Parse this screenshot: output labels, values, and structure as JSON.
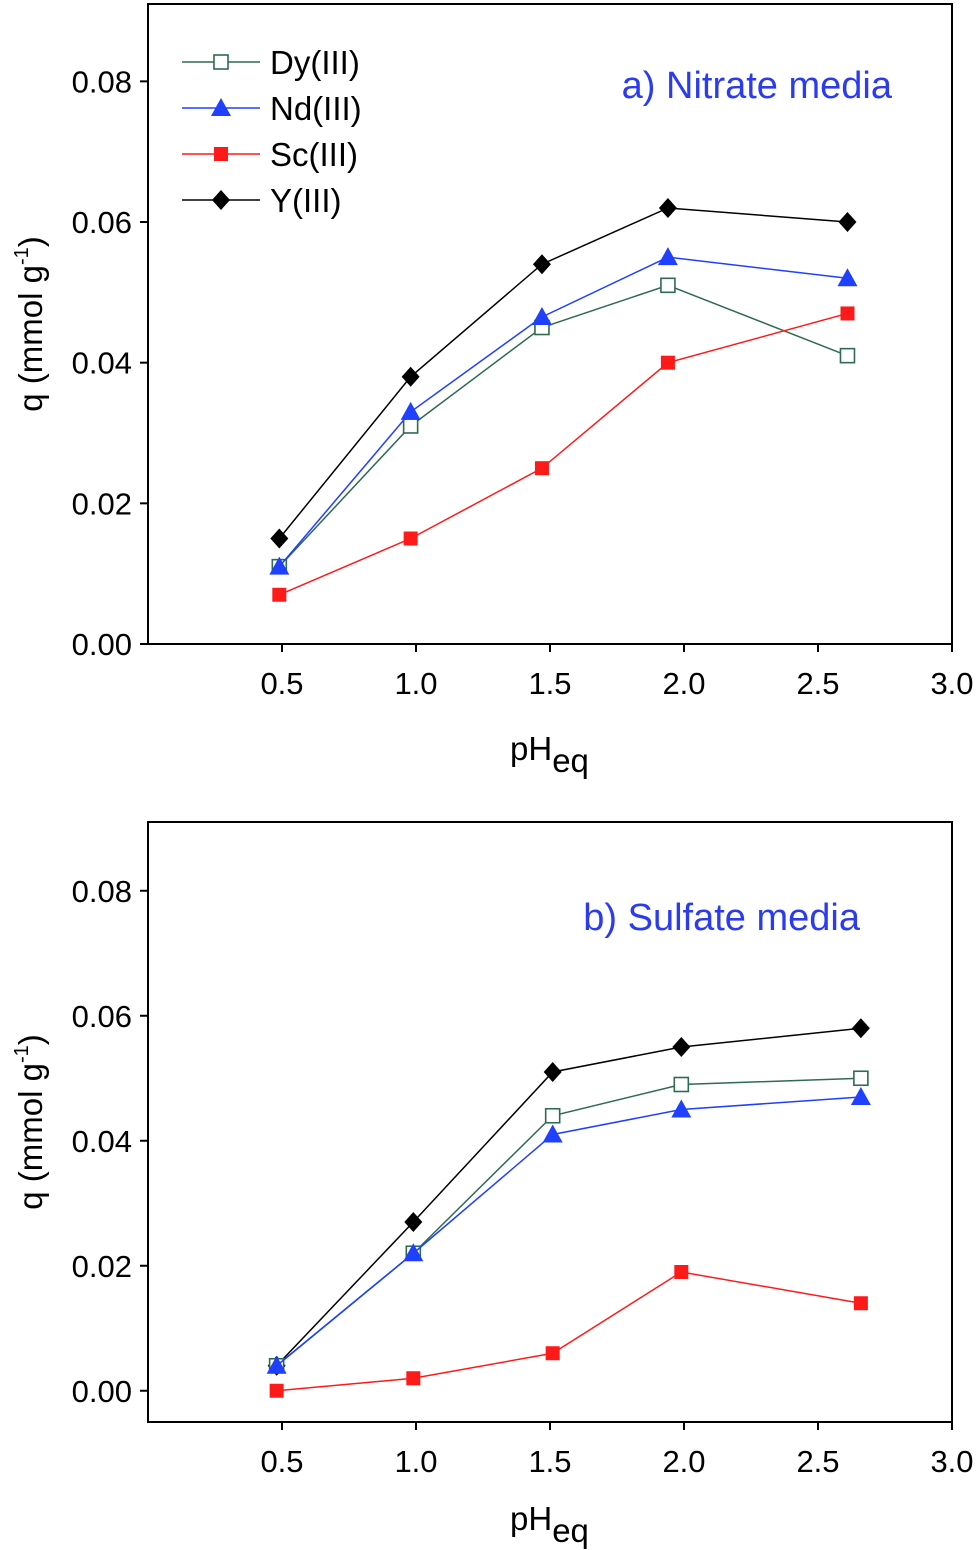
{
  "chart_data": [
    {
      "type": "line",
      "panel": "a",
      "annotation": "a) Nitrate media",
      "annotation_color": "#2b3cf0",
      "xlabel": "pH",
      "xlabel_sub": "eq",
      "ylabel": "q (mmol g",
      "ylabel_sup": "-1",
      "ylabel_end": ")",
      "xlim": [
        0,
        3.0
      ],
      "ylim": [
        0,
        0.091
      ],
      "xticks": [
        "0.5",
        "1.0",
        "1.5",
        "2.0",
        "2.5",
        "3.0"
      ],
      "yticks": [
        "0.00",
        "0.02",
        "0.04",
        "0.06",
        "0.08"
      ],
      "grid": false,
      "legend": "top-left",
      "series": [
        {
          "name": "Dy(III)",
          "color": "#2e6b4f",
          "marker": "open-square",
          "x": [
            0.49,
            0.98,
            1.47,
            1.94,
            2.61
          ],
          "y": [
            0.011,
            0.031,
            0.045,
            0.051,
            0.041
          ]
        },
        {
          "name": "Nd(III)",
          "color": "#2040ff",
          "marker": "triangle",
          "x": [
            0.49,
            0.98,
            1.47,
            1.94,
            2.61
          ],
          "y": [
            0.011,
            0.033,
            0.0465,
            0.055,
            0.052
          ]
        },
        {
          "name": "Sc(III)",
          "color": "#ff1a1a",
          "marker": "square",
          "x": [
            0.49,
            0.98,
            1.47,
            1.94,
            2.61
          ],
          "y": [
            0.007,
            0.015,
            0.025,
            0.04,
            0.047
          ]
        },
        {
          "name": "Y(III)",
          "color": "#000000",
          "marker": "diamond",
          "x": [
            0.49,
            0.98,
            1.47,
            1.94,
            2.61
          ],
          "y": [
            0.015,
            0.038,
            0.054,
            0.062,
            0.06
          ]
        }
      ]
    },
    {
      "type": "line",
      "panel": "b",
      "annotation": "b) Sulfate media",
      "annotation_color": "#2b3cf0",
      "xlabel": "pH",
      "xlabel_sub": "eq",
      "ylabel": "q (mmol g",
      "ylabel_sup": "-1",
      "ylabel_end": ")",
      "xlim": [
        0,
        3.0
      ],
      "ylim": [
        -0.005,
        0.091
      ],
      "xticks": [
        "0.5",
        "1.0",
        "1.5",
        "2.0",
        "2.5",
        "3.0"
      ],
      "yticks": [
        "0.00",
        "0.02",
        "0.04",
        "0.06",
        "0.08"
      ],
      "grid": false,
      "series": [
        {
          "name": "Y(III)",
          "color": "#000000",
          "marker": "diamond",
          "x": [
            0.48,
            0.99,
            1.51,
            1.99,
            2.66
          ],
          "y": [
            0.004,
            0.027,
            0.051,
            0.055,
            0.058
          ]
        },
        {
          "name": "Dy(III)",
          "color": "#2e6b4f",
          "marker": "open-square",
          "x": [
            0.48,
            0.99,
            1.51,
            1.99,
            2.66
          ],
          "y": [
            0.004,
            0.022,
            0.044,
            0.049,
            0.05
          ]
        },
        {
          "name": "Nd(III)",
          "color": "#2040ff",
          "marker": "triangle",
          "x": [
            0.48,
            0.99,
            1.51,
            1.99,
            2.66
          ],
          "y": [
            0.004,
            0.022,
            0.041,
            0.045,
            0.047
          ]
        },
        {
          "name": "Sc(III)",
          "color": "#ff1a1a",
          "marker": "square",
          "x": [
            0.48,
            0.99,
            1.51,
            1.99,
            2.66
          ],
          "y": [
            0.0,
            0.002,
            0.006,
            0.019,
            0.014
          ]
        }
      ]
    }
  ]
}
